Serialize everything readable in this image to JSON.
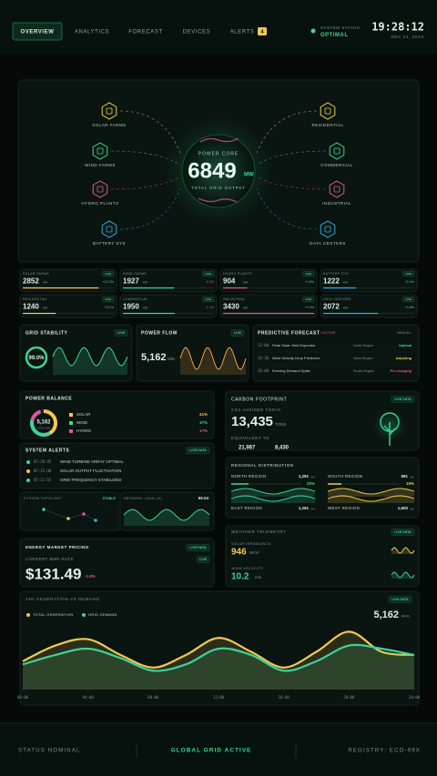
{
  "nav": {
    "tabs": [
      "OVERVIEW",
      "ANALYTICS",
      "FORECAST",
      "DEVICES",
      "ALERTS"
    ],
    "alert_count": "4"
  },
  "status": {
    "label": "SYSTEM STATUS",
    "value": "OPTIMAL"
  },
  "clock": {
    "time": "19:28:12",
    "date": "DEC 14, 20XX"
  },
  "hero": {
    "core_label": "POWER CORE",
    "output": "6849",
    "unit": "MW",
    "caption": "TOTAL GRID OUTPUT",
    "sources": [
      "SOLAR FARMS",
      "WIND FARMS",
      "HYDRO PLANTS",
      "BATTERY SYS"
    ],
    "consumers": [
      "RESIDENTIAL",
      "COMMERCIAL",
      "INDUSTRIAL",
      "DATA CENTERS"
    ]
  },
  "stats": [
    {
      "name": "SOLAR FARMS",
      "value": 2852,
      "unit": "kW",
      "change": "+12.3%",
      "tag": "LIVE",
      "color": "#f2c94c"
    },
    {
      "name": "WIND FARMS",
      "value": 1927,
      "unit": "kW",
      "change": "-0.1%",
      "tag": "LIVE",
      "color": "#3fd39a"
    },
    {
      "name": "HYDRO PLANTS",
      "value": 904,
      "unit": "kW",
      "change": "+1.8%",
      "tag": "LIVE",
      "color": "#e0569a"
    },
    {
      "name": "BATTERY SYS",
      "value": 1222,
      "unit": "kW",
      "change": "+0.4%",
      "tag": "LIVE",
      "color": "#3aa8e0"
    },
    {
      "name": "RESIDENTIAL",
      "value": 1240,
      "unit": "kW",
      "change": "+0.1%",
      "tag": "LIVE",
      "color": "#f2c94c"
    },
    {
      "name": "COMMERCIAL",
      "value": 1950,
      "unit": "kW",
      "change": "-1.1%",
      "tag": "LIVE",
      "color": "#3fd39a"
    },
    {
      "name": "INDUSTRIAL",
      "value": 3430,
      "unit": "kW",
      "change": "+2.4%",
      "tag": "LIVE",
      "color": "#e0569a"
    },
    {
      "name": "DATA CENTERS",
      "value": 2072,
      "unit": "kW",
      "change": "+0.8%",
      "tag": "LIVE",
      "color": "#3aa8e0"
    }
  ],
  "grid_stability": {
    "title": "GRID STABILITY",
    "tag": "LIVE",
    "value": 99.0,
    "value_label": "99.0%"
  },
  "power_flow": {
    "title": "POWER FLOW",
    "tag": "LIVE",
    "value": "5,162",
    "unit": "MW"
  },
  "forecast": {
    "title": "PREDICTIVE FORECAST",
    "active": "3 ACTIVE",
    "link": "VIEW ALL",
    "rows": [
      [
        "13:00",
        "Peak Solar Yield Expected",
        "North Region",
        "Optimal"
      ],
      [
        "14:30",
        "Wind Velocity Drop Predicted",
        "West Region",
        "Adjusting"
      ],
      [
        "16:00",
        "Evening Demand Spike",
        "South Region",
        "Pre-charging"
      ]
    ]
  },
  "power_balance": {
    "title": "POWER BALANCE",
    "total": "5,162",
    "total_label": "TOTAL MW",
    "sources": [
      {
        "name": "SOLAR",
        "value": 41,
        "label": "41%",
        "color": "#f2c94c"
      },
      {
        "name": "WIND",
        "value": 37,
        "label": "37%",
        "color": "#3fd39a"
      },
      {
        "name": "HYDRO",
        "value": 17,
        "label": "17%",
        "color": "#e0569a"
      }
    ]
  },
  "carbon": {
    "title": "CARBON FOOTPRINT",
    "tag": "LIVE DATA",
    "label": "CO2 AVOIDED TODAY",
    "value": "13,435",
    "unit": "TONS",
    "equivalent": "EQUIVALENT TO",
    "equiv_values": [
      "21,987",
      "8,430"
    ]
  },
  "alerts": {
    "title": "SYSTEM ALERTS",
    "tag": "LIVE DATA",
    "rows": [
      {
        "time": "07:28:45",
        "text": "WIND TURBINE ARRAY OPTIMAL",
        "color": "#3fd39a"
      },
      {
        "time": "07:15:30",
        "text": "SOLAR OUTPUT FLUCTUATION",
        "color": "#f2c94c"
      },
      {
        "time": "07:11:55",
        "text": "GRID FREQUENCY STABILIZED",
        "color": "#3fd39a"
      }
    ]
  },
  "topology": {
    "title": "SYSTEM TOPOLOGY",
    "status": "STABLE"
  },
  "network_load": {
    "title": "NETWORK LOAD (%)",
    "value": "60.04"
  },
  "regional": {
    "title": "REGIONAL DISTRIBUTION",
    "regions": [
      {
        "name": "NORTH REGION",
        "value": "1,291",
        "unit": "kW",
        "share": 25,
        "share_label": "25%"
      },
      {
        "name": "SOUTH REGION",
        "value": "981",
        "unit": "kW",
        "share": 19,
        "share_label": "19%"
      },
      {
        "name": "EAST REGION",
        "value": "1,291",
        "unit": "kW"
      },
      {
        "name": "WEST REGION",
        "value": "1,600",
        "unit": "kW"
      }
    ]
  },
  "market": {
    "title": "ENERGY MARKET PRICING",
    "tag": "LIVE DATA",
    "label": "CURRENT MWh RATE",
    "sub_tag": "LIVE",
    "price": "$131.49",
    "change": "-1.8%"
  },
  "weather": {
    "title": "WEATHER TELEMETRY",
    "tag": "LIVE DATA",
    "items": [
      {
        "name": "SOLAR IRRADIANCE",
        "value": "946",
        "unit": "W/m²",
        "color": "#f2c94c"
      },
      {
        "name": "WIND VELOCITY",
        "value": "10.2",
        "unit": "m/s",
        "color": "#3fd39a"
      }
    ]
  },
  "chart_data": {
    "type": "line",
    "title": "24H GENERATION VS DEMAND",
    "tag": "LIVE DATA",
    "total": "5,162",
    "total_unit": "MWh",
    "x": [
      0,
      2,
      4,
      6,
      8,
      10,
      12,
      14,
      16,
      18,
      20,
      22,
      24
    ],
    "xlim": [
      0,
      24
    ],
    "xticks": [
      {
        "value": 0,
        "label": "00:00"
      },
      {
        "value": 4,
        "label": "04:00"
      },
      {
        "value": 8,
        "label": "08:00"
      },
      {
        "value": 12,
        "label": "12:00"
      },
      {
        "value": 16,
        "label": "16:00"
      },
      {
        "value": 20,
        "label": "20:00"
      },
      {
        "value": 24,
        "label": "24:00"
      }
    ],
    "series": [
      {
        "name": "TOTAL GENERATION",
        "color": "#f2c94c",
        "values": [
          45,
          70,
          80,
          55,
          35,
          55,
          82,
          60,
          35,
          60,
          92,
          60,
          55
        ]
      },
      {
        "name": "GRID DEMAND",
        "color": "#3fd39a",
        "values": [
          40,
          55,
          65,
          50,
          30,
          40,
          65,
          55,
          30,
          45,
          70,
          65,
          55
        ]
      }
    ]
  },
  "footer": {
    "left": "STATUS NOMINAL",
    "center": "GLOBAL GRID ACTIVE",
    "right": "REGISTRY: ECO-99X"
  }
}
